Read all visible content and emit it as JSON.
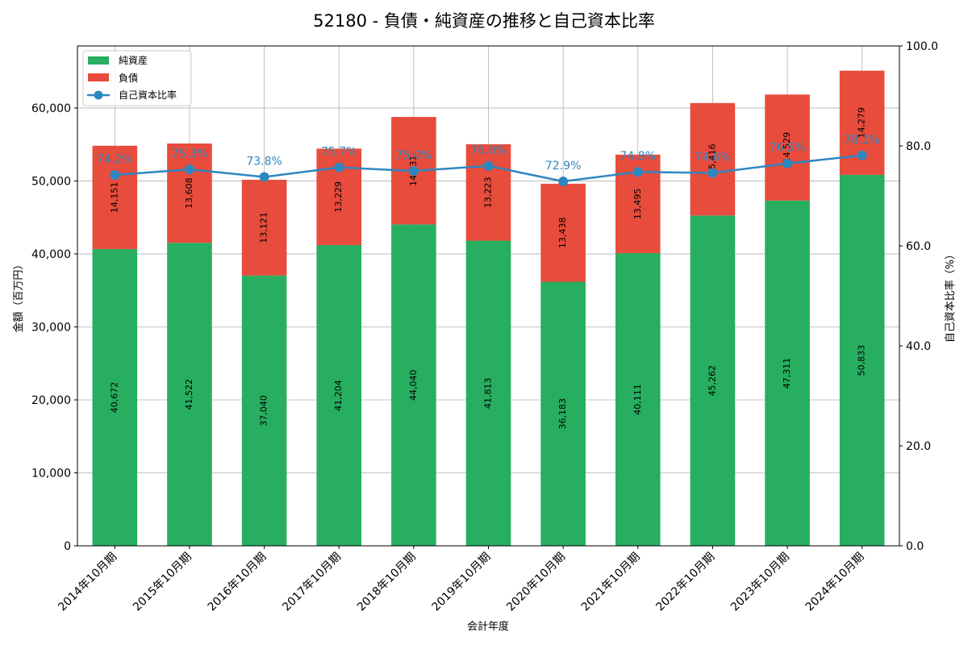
{
  "chart_data": {
    "type": "bar",
    "stacked": true,
    "title": "52180 - 負債・純資産の推移と自己資本比率",
    "xlabel": "会計年度",
    "ylabel": "金額（百万円）",
    "y2label": "自己資本比率（%）",
    "ylim": [
      0,
      68500
    ],
    "y2lim": [
      0,
      100
    ],
    "yticks": [
      0,
      10000,
      20000,
      30000,
      40000,
      50000,
      60000
    ],
    "ytick_labels": [
      "0",
      "10,000",
      "20,000",
      "30,000",
      "40,000",
      "50,000",
      "60,000"
    ],
    "y2ticks": [
      0,
      20,
      40,
      60,
      80,
      100
    ],
    "y2tick_labels": [
      "0.0",
      "20.0",
      "40.0",
      "60.0",
      "80.0",
      "100.0"
    ],
    "grid": true,
    "legend_position": "top-left",
    "categories": [
      "2014年10月期",
      "2015年10月期",
      "2016年10月期",
      "2017年10月期",
      "2018年10月期",
      "2019年10月期",
      "2020年10月期",
      "2021年10月期",
      "2022年10月期",
      "2023年10月期",
      "2024年10月期"
    ],
    "series": [
      {
        "name": "純資産",
        "type": "bar",
        "color": "#27ae60",
        "values": [
          40672,
          41522,
          37040,
          41204,
          44040,
          41813,
          36183,
          40111,
          45262,
          47311,
          50833
        ],
        "labels": [
          "40,672",
          "41,522",
          "37,040",
          "41,204",
          "44,040",
          "41,813",
          "36,183",
          "40,111",
          "45,262",
          "47,311",
          "50,833"
        ]
      },
      {
        "name": "負債",
        "type": "bar",
        "color": "#e74c3c",
        "values": [
          14151,
          13608,
          13121,
          13229,
          14731,
          13223,
          13438,
          13495,
          15416,
          14529,
          14279
        ],
        "labels": [
          "14,151",
          "13,608",
          "13,121",
          "13,229",
          "14,731",
          "13,223",
          "13,438",
          "13,495",
          "15,416",
          "14,529",
          "14,279"
        ]
      },
      {
        "name": "自己資本比率",
        "type": "line",
        "axis": "right",
        "color": "#2e86c1",
        "values": [
          74.2,
          75.3,
          73.8,
          75.7,
          75.0,
          76.0,
          72.9,
          74.8,
          74.6,
          76.5,
          78.1
        ],
        "labels": [
          "74.2%",
          "75.3%",
          "73.8%",
          "75.7%",
          "75.0%",
          "76.0%",
          "72.9%",
          "74.8%",
          "74.6%",
          "76.5%",
          "78.1%"
        ]
      }
    ]
  }
}
